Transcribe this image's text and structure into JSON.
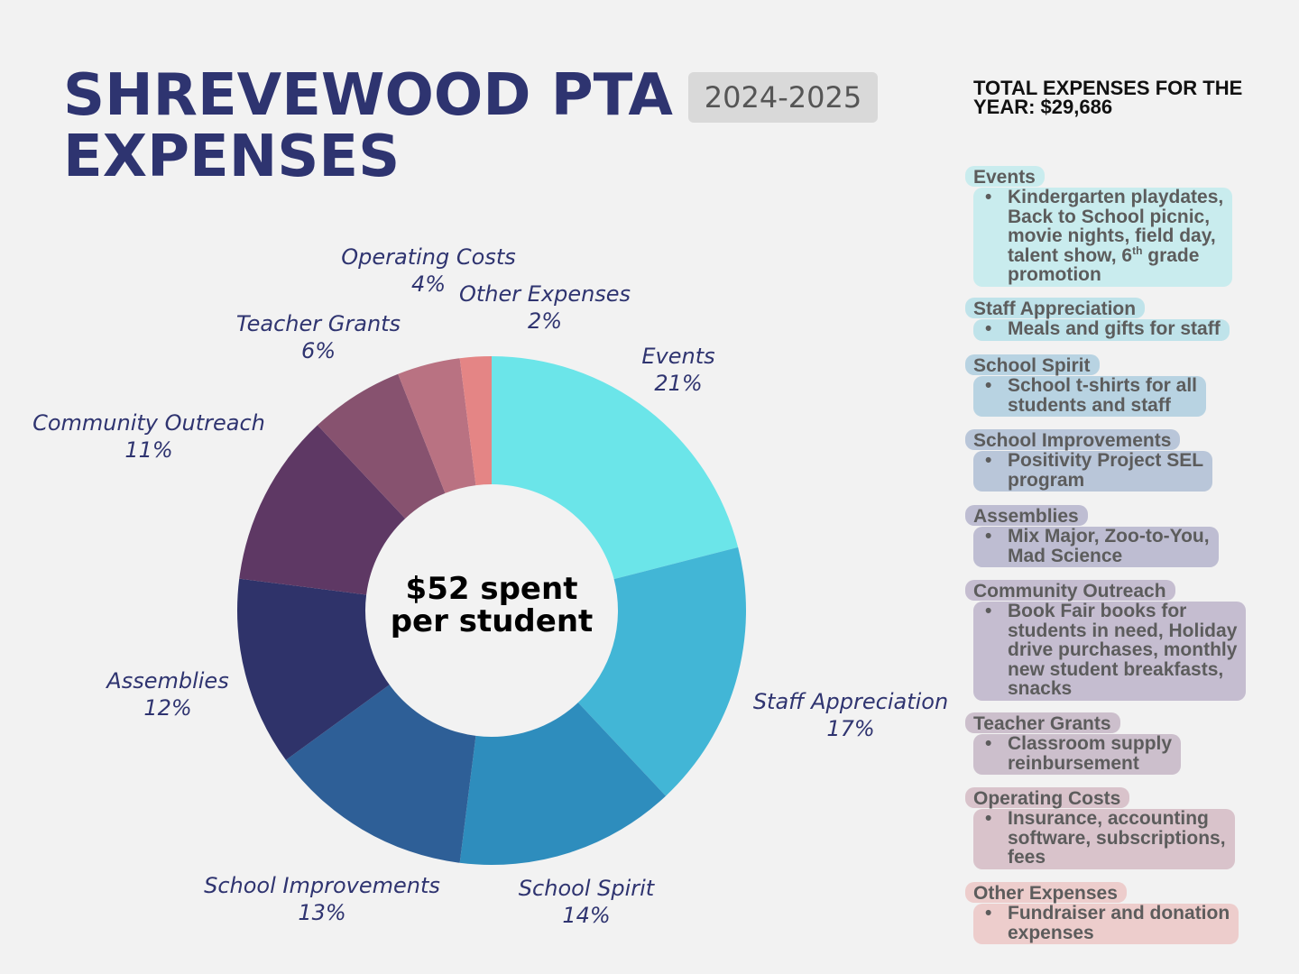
{
  "header": {
    "title_line1": "SHREVEWOOD PTA",
    "title_line2": "EXPENSES",
    "year_badge": "2024-2025",
    "total_line1": "TOTAL EXPENSES FOR THE",
    "total_line2": "YEAR: $29,686"
  },
  "center": {
    "line1": "$52 spent",
    "line2": "per student"
  },
  "chart_data": {
    "type": "pie",
    "donut": true,
    "direction": "clockwise from top",
    "categories": [
      "Events",
      "Staff Appreciation",
      "School Spirit",
      "School Improvements",
      "Assemblies",
      "Community Outreach",
      "Teacher Grants",
      "Operating Costs",
      "Other Expenses"
    ],
    "values": [
      21,
      17,
      14,
      13,
      12,
      11,
      6,
      4,
      2
    ],
    "unit": "%",
    "data_labels": [
      "21%",
      "17%",
      "14%",
      "13%",
      "12%",
      "11%",
      "6%",
      "4%",
      "2%"
    ],
    "colors": [
      "#6be5e9",
      "#42b6d6",
      "#2e8dbd",
      "#2e5f97",
      "#2f336a",
      "#5e3864",
      "#87526f",
      "#b97282",
      "#e48585"
    ]
  },
  "panel": [
    {
      "title": "Events",
      "bg": "#c9ecee",
      "lines": [
        "Kindergarten playdates,",
        "Back to School picnic,",
        "movie nights, field day,",
        "talent show, 6|th| grade",
        "promotion"
      ]
    },
    {
      "title": "Staff Appreciation",
      "bg": "#bfe3ea",
      "lines": [
        "Meals and gifts for staff"
      ]
    },
    {
      "title": "School Spirit",
      "bg": "#b8d3e2",
      "lines": [
        "School t-shirts for all",
        "students and staff"
      ]
    },
    {
      "title": "School Improvements",
      "bg": "#b9c6d9",
      "lines": [
        "Positivity Project SEL",
        "program"
      ]
    },
    {
      "title": "Assemblies",
      "bg": "#bebdd2",
      "lines": [
        "Mix Major, Zoo-to-You,",
        "Mad Science"
      ]
    },
    {
      "title": "Community Outreach",
      "bg": "#c5bdd0",
      "lines": [
        "Book Fair books for",
        "students in need, Holiday",
        "drive purchases, monthly",
        "new student breakfasts,",
        "snacks"
      ]
    },
    {
      "title": "Teacher Grants",
      "bg": "#ccbfcc",
      "lines": [
        "Classroom supply",
        "reinbursement"
      ]
    },
    {
      "title": "Operating Costs",
      "bg": "#d9c3cb",
      "lines": [
        "Insurance, accounting",
        "software, subscriptions,",
        "fees"
      ]
    },
    {
      "title": "Other Expenses",
      "bg": "#edcdcc",
      "lines": [
        "Fundraiser and donation",
        "expenses"
      ]
    }
  ]
}
